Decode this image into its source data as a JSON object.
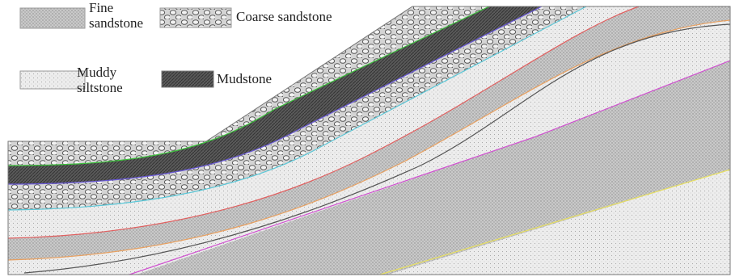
{
  "legend": [
    {
      "label": "Fine sandstone"
    },
    {
      "label": "Coarse sandstone"
    },
    {
      "label": "Muddy siltstone"
    },
    {
      "label": "Mudstone"
    }
  ]
}
